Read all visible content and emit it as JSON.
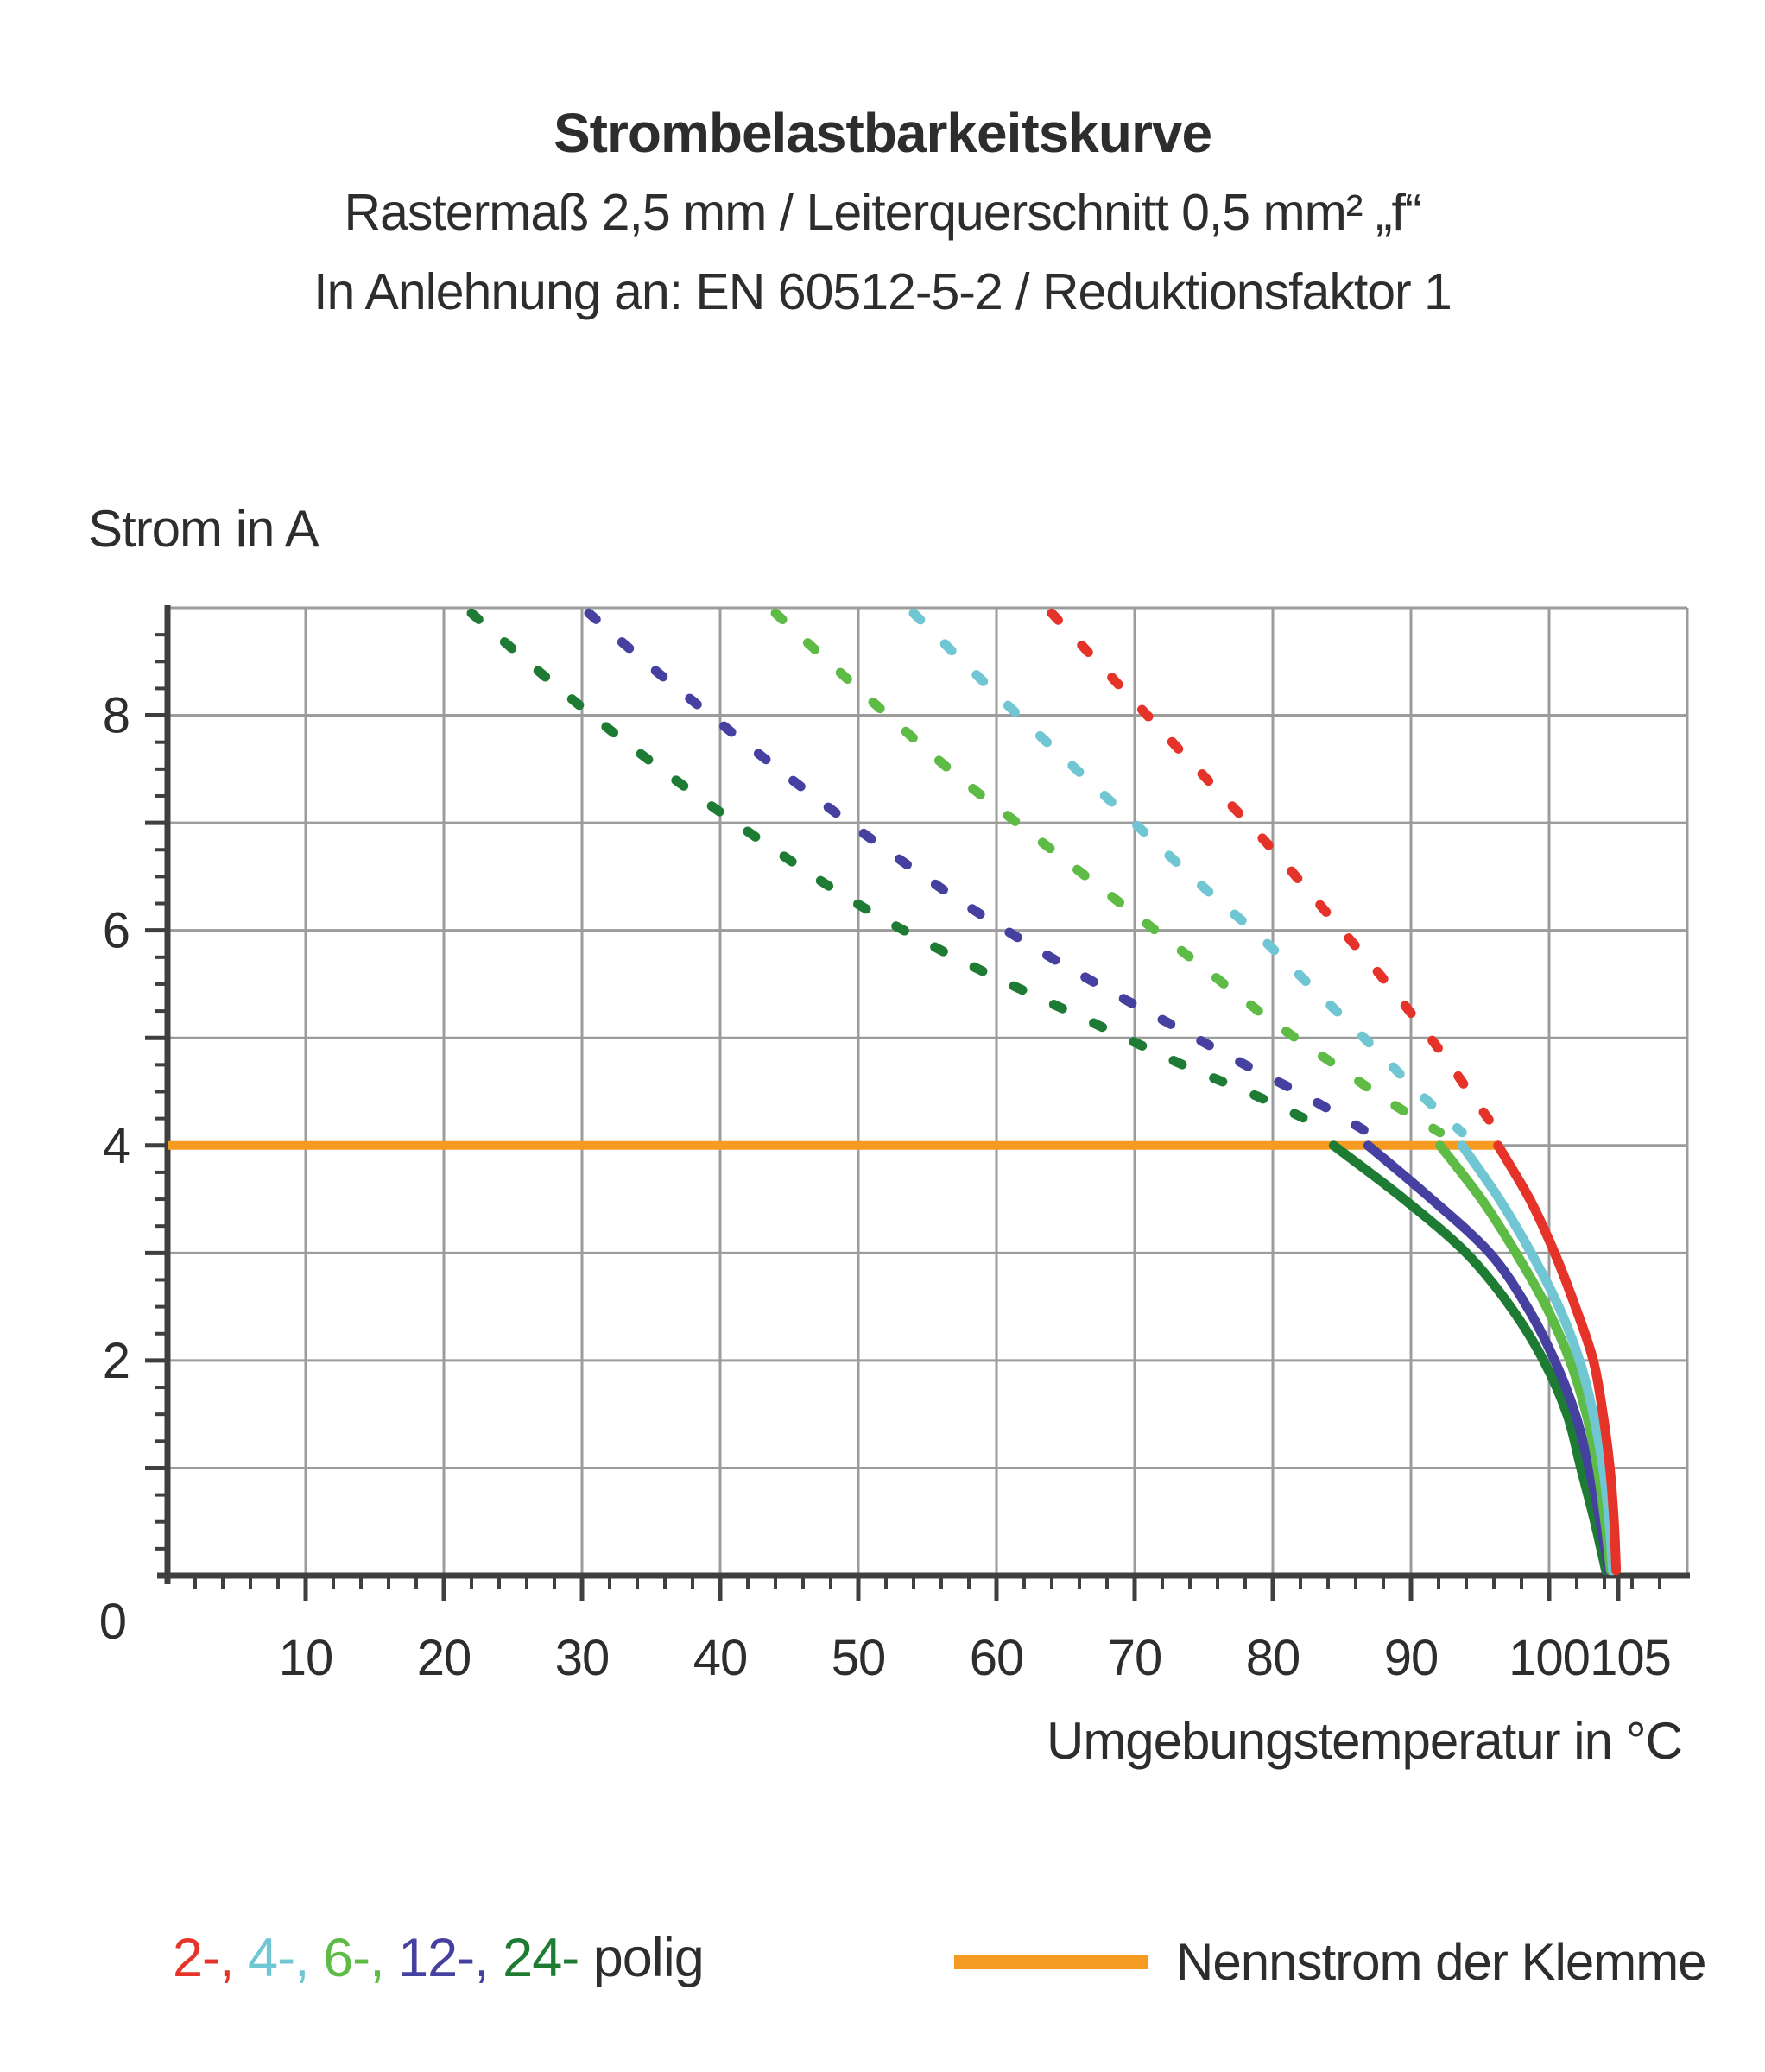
{
  "title": "Strombelastbarkeitskurve",
  "subtitle1": "Rastermaß 2,5 mm / Leiterquerschnitt 0,5 mm² „f“",
  "subtitle2": "In Anlehnung an: EN 60512-5-2 / Reduktionsfaktor 1",
  "y_axis_title": "Strom in A",
  "x_axis_title": "Umgebungstemperatur in °C",
  "origin_label": "0",
  "legend": {
    "pole_items": [
      {
        "label": "2-,",
        "color": "#E6332A"
      },
      {
        "label": "4-,",
        "color": "#70C6D3"
      },
      {
        "label": "6-,",
        "color": "#5DBB46"
      },
      {
        "label": "12-,",
        "color": "#4641A0"
      },
      {
        "label": "24-",
        "color": "#1E7B33"
      }
    ],
    "suffix": "polig",
    "nominal_label": "Nennstrom der Klemme",
    "nominal_color": "#F59B21"
  },
  "chart_data": {
    "type": "line",
    "title": "Strombelastbarkeitskurve",
    "xlabel": "Umgebungstemperatur in °C",
    "ylabel": "Strom in A",
    "xlim": [
      0,
      110
    ],
    "ylim": [
      0,
      9
    ],
    "grid": true,
    "axes": {
      "x": {
        "min": 0,
        "max": 110,
        "major": 10,
        "minor": 2,
        "extra_major": 105
      },
      "y": {
        "min": 0,
        "max": 9,
        "major": 1,
        "minor": 0.25
      }
    },
    "x_tick_labels": [
      10,
      20,
      30,
      40,
      50,
      60,
      70,
      80,
      90,
      100,
      105
    ],
    "y_tick_labels": [
      2,
      4,
      6,
      8
    ],
    "grid_color": "#9C9C9C",
    "axis_color": "#3F3F3F",
    "nominal_current": {
      "value": 4,
      "x_start": 0,
      "x_end": 96.3,
      "label": "Nennstrom der Klemme",
      "color": "#F59B21"
    },
    "series": [
      {
        "name": "24-polig",
        "color": "#1E7B33",
        "dashed": [
          [
            22,
            8.95
          ],
          [
            26.5,
            8.45
          ],
          [
            31,
            7.97
          ],
          [
            35.5,
            7.52
          ],
          [
            40,
            7.1
          ],
          [
            44.5,
            6.7
          ],
          [
            49,
            6.32
          ],
          [
            54,
            5.95
          ],
          [
            59,
            5.62
          ],
          [
            64,
            5.32
          ],
          [
            69,
            5.02
          ],
          [
            74,
            4.72
          ],
          [
            79,
            4.45
          ],
          [
            84.4,
            4.12
          ]
        ],
        "solid": [
          [
            84.4,
            4.0
          ],
          [
            89.5,
            3.5
          ],
          [
            94,
            3.0
          ],
          [
            97.2,
            2.5
          ],
          [
            99.6,
            2.0
          ],
          [
            101.3,
            1.5
          ],
          [
            102.3,
            1.0
          ],
          [
            103.3,
            0.5
          ],
          [
            104.1,
            0.05
          ]
        ]
      },
      {
        "name": "12-polig",
        "color": "#4641A0",
        "dashed": [
          [
            30.5,
            8.95
          ],
          [
            35,
            8.45
          ],
          [
            39.5,
            7.98
          ],
          [
            44,
            7.52
          ],
          [
            48.5,
            7.08
          ],
          [
            53,
            6.66
          ],
          [
            58,
            6.22
          ],
          [
            63,
            5.82
          ],
          [
            68,
            5.45
          ],
          [
            73,
            5.1
          ],
          [
            78,
            4.75
          ],
          [
            82.5,
            4.45
          ],
          [
            86.9,
            4.12
          ]
        ],
        "solid": [
          [
            86.9,
            4.0
          ],
          [
            91.5,
            3.5
          ],
          [
            95.7,
            3.0
          ],
          [
            98.4,
            2.5
          ],
          [
            100.4,
            2.0
          ],
          [
            101.9,
            1.5
          ],
          [
            102.9,
            1.0
          ],
          [
            103.7,
            0.5
          ],
          [
            104.3,
            0.05
          ]
        ]
      },
      {
        "name": "6-polig",
        "color": "#5DBB46",
        "dashed": [
          [
            44,
            8.95
          ],
          [
            48.5,
            8.42
          ],
          [
            53,
            7.9
          ],
          [
            57.5,
            7.4
          ],
          [
            62,
            6.95
          ],
          [
            66.5,
            6.5
          ],
          [
            71,
            6.05
          ],
          [
            75.5,
            5.6
          ],
          [
            80,
            5.15
          ],
          [
            84.5,
            4.75
          ],
          [
            88.5,
            4.4
          ],
          [
            92.1,
            4.12
          ]
        ],
        "solid": [
          [
            92.1,
            4.0
          ],
          [
            95.1,
            3.5
          ],
          [
            97.6,
            3.0
          ],
          [
            99.8,
            2.5
          ],
          [
            101.5,
            2.0
          ],
          [
            102.7,
            1.5
          ],
          [
            103.5,
            1.0
          ],
          [
            104.05,
            0.5
          ],
          [
            104.45,
            0.05
          ]
        ]
      },
      {
        "name": "4-polig",
        "color": "#70C6D3",
        "dashed": [
          [
            54,
            8.95
          ],
          [
            58.2,
            8.42
          ],
          [
            62.4,
            7.9
          ],
          [
            66.6,
            7.4
          ],
          [
            70.8,
            6.9
          ],
          [
            75,
            6.4
          ],
          [
            79,
            5.95
          ],
          [
            83,
            5.45
          ],
          [
            87,
            4.95
          ],
          [
            90.5,
            4.5
          ],
          [
            93.7,
            4.12
          ]
        ],
        "solid": [
          [
            93.7,
            4.0
          ],
          [
            96.4,
            3.5
          ],
          [
            98.7,
            3.0
          ],
          [
            100.7,
            2.5
          ],
          [
            102.2,
            2.0
          ],
          [
            103.2,
            1.5
          ],
          [
            103.9,
            1.0
          ],
          [
            104.35,
            0.5
          ],
          [
            104.6,
            0.05
          ]
        ]
      },
      {
        "name": "2-polig",
        "color": "#E6332A",
        "dashed": [
          [
            64,
            8.95
          ],
          [
            68,
            8.4
          ],
          [
            72,
            7.85
          ],
          [
            76,
            7.3
          ],
          [
            80,
            6.75
          ],
          [
            84,
            6.15
          ],
          [
            88,
            5.55
          ],
          [
            92,
            4.9
          ],
          [
            94.2,
            4.5
          ],
          [
            96.3,
            4.12
          ]
        ],
        "solid": [
          [
            96.3,
            4.0
          ],
          [
            98.6,
            3.5
          ],
          [
            100.4,
            3.0
          ],
          [
            101.9,
            2.5
          ],
          [
            103.2,
            2.0
          ],
          [
            103.9,
            1.5
          ],
          [
            104.4,
            1.0
          ],
          [
            104.7,
            0.5
          ],
          [
            104.85,
            0.05
          ]
        ]
      }
    ],
    "legend_position": "bottom"
  }
}
